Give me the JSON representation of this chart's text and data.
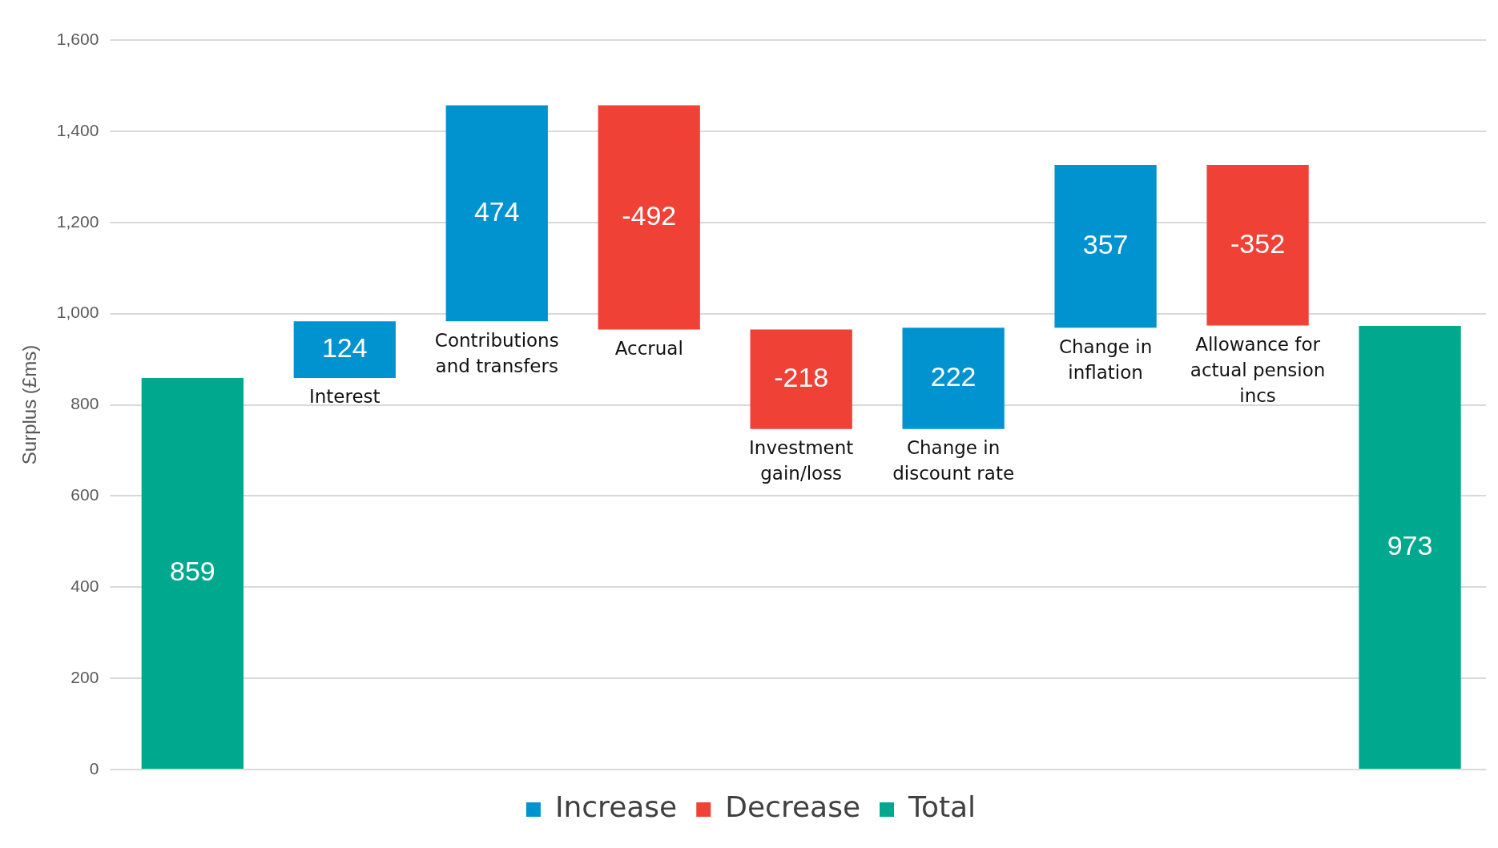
{
  "chart_data": {
    "type": "bar",
    "ylabel": "Surplus (£ms)",
    "categories": [
      null,
      "Interest",
      "Contributions and transfers",
      "Accrual",
      "Investment gain/loss",
      "Change in discount rate",
      "Change in inflation",
      "Allowance for actual pension incs",
      null
    ],
    "series": [
      {
        "name": "Increase",
        "color": "#0093d0",
        "values": [
          null,
          124,
          474,
          null,
          null,
          222,
          357,
          null,
          null
        ],
        "base": [
          null,
          859,
          983,
          null,
          null,
          747,
          969,
          null,
          null
        ]
      },
      {
        "name": "Decrease",
        "color": "#ef4136",
        "values": [
          null,
          null,
          null,
          -492,
          -218,
          null,
          null,
          -352,
          null
        ],
        "base": [
          null,
          null,
          null,
          1457,
          965,
          null,
          null,
          1326,
          null
        ]
      },
      {
        "name": "Total",
        "color": "#00a88e",
        "values": [
          859,
          null,
          null,
          null,
          null,
          null,
          null,
          null,
          973
        ],
        "base": [
          0,
          null,
          null,
          null,
          null,
          null,
          null,
          null,
          0
        ]
      }
    ],
    "ylim": [
      0,
      1600
    ],
    "yticks": [
      0,
      200,
      400,
      600,
      800,
      {
        "value": 1000,
        "label": "1,000"
      },
      {
        "value": 1200,
        "label": "1,200"
      },
      {
        "value": 1400,
        "label": "1,400"
      },
      {
        "value": 1600,
        "label": "1,600"
      }
    ],
    "grid": "y",
    "legend": "bottom",
    "tick_labels": "y",
    "data_labels": true
  }
}
